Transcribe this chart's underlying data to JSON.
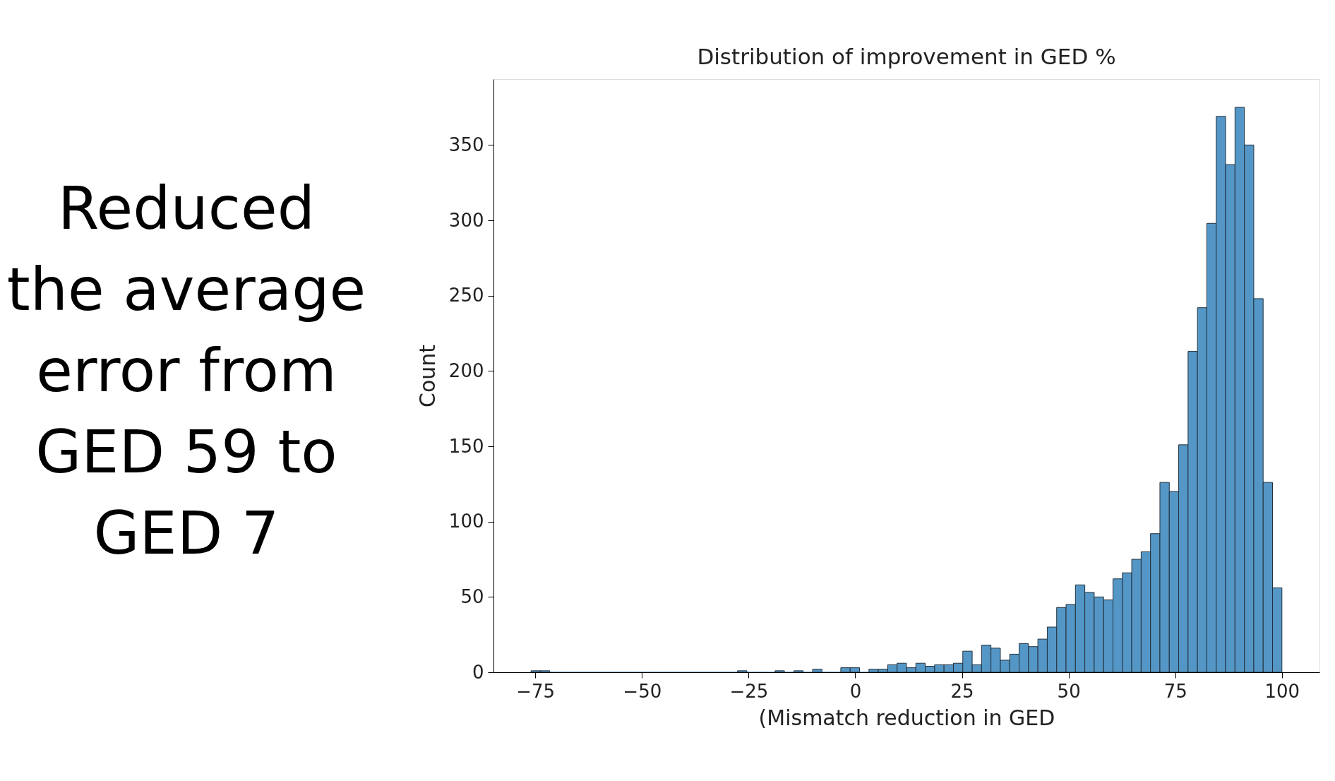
{
  "chart_data": {
    "type": "histogram",
    "title": "Distribution of improvement in GED %",
    "xlabel": "(Mismatch reduction in GED",
    "ylabel": "Count",
    "color": "#5497c6",
    "bins": [
      -76,
      -73.8,
      -71.6,
      -69.4,
      -67.2,
      -65,
      -62.8,
      -60.6,
      -58.4,
      -56.2,
      -54,
      -51.8,
      -49.6,
      -47.4,
      -45.2,
      -43,
      -40.8,
      -38.6,
      -36.4,
      -34.2,
      -32,
      -29.8,
      -27.6,
      -25.4,
      -23.2,
      -21,
      -18.8,
      -16.6,
      -14.4,
      -12.2,
      -10,
      -7.8,
      -5.6,
      -3.4,
      -1.2,
      1,
      3.2,
      5.4,
      7.6,
      9.8,
      12,
      14.2,
      16.4,
      18.6,
      20.8,
      23,
      25.2,
      27.4,
      29.6,
      31.8,
      34,
      36.2,
      38.4,
      40.6,
      42.8,
      45,
      47.2,
      49.4,
      51.6,
      53.8,
      56,
      58.2,
      60.4,
      62.6,
      64.8,
      67,
      69.2,
      71.4,
      73.6,
      75.8,
      78,
      80.2,
      82.4,
      84.6,
      86.8,
      89,
      91.2,
      93.4,
      95.6,
      97.8,
      100
    ],
    "values": [
      1,
      1,
      0,
      0,
      0,
      0,
      0,
      0,
      0,
      0,
      0,
      0,
      0,
      0,
      0,
      0,
      0,
      0,
      0,
      0,
      0,
      0,
      1,
      0,
      0,
      0,
      1,
      0,
      1,
      0,
      2,
      0,
      0,
      3,
      3,
      0,
      2,
      2,
      5,
      6,
      3,
      6,
      4,
      5,
      5,
      6,
      14,
      5,
      18,
      16,
      8,
      12,
      19,
      17,
      22,
      30,
      43,
      45,
      58,
      53,
      50,
      48,
      62,
      66,
      75,
      80,
      92,
      126,
      120,
      151,
      213,
      242,
      298,
      369,
      337,
      375,
      350,
      248,
      126,
      56
    ],
    "xlim": [
      -84.8,
      108.8
    ],
    "ylim": [
      0,
      393.75
    ],
    "xticks": [
      -75,
      -50,
      -25,
      0,
      25,
      50,
      75,
      100
    ],
    "yticks": [
      0,
      50,
      100,
      150,
      200,
      250,
      300,
      350
    ],
    "annotations": [
      "Reduced\nthe average\nerror from\nGED 59 to\nGED 7"
    ]
  }
}
